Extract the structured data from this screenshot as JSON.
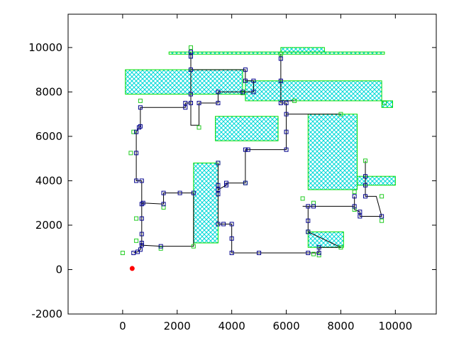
{
  "chart_data": {
    "type": "scatter",
    "title": "",
    "xlabel": "",
    "ylabel": "",
    "xlim": [
      -2000,
      11500
    ],
    "ylim": [
      -2000,
      11500
    ],
    "x_ticks": [
      0,
      2000,
      4000,
      6000,
      8000,
      10000
    ],
    "y_ticks": [
      -2000,
      0,
      2000,
      4000,
      6000,
      8000,
      10000
    ],
    "x_tick_labels": [
      "0",
      "2000",
      "4000",
      "6000",
      "8000",
      "10000"
    ],
    "y_tick_labels": [
      "-2000",
      "0",
      "2000",
      "4000",
      "6000",
      "8000",
      "10000"
    ],
    "grid": false,
    "colors": {
      "obstacle_fill": "#00ffff",
      "obstacle_edge": "#00dd00",
      "node_primary": "#00008b",
      "node_secondary": "#22cc22",
      "path": "#000000",
      "start": "#ff0000"
    },
    "obstacles": [
      {
        "x0": 1700,
        "y0": 9700,
        "x1": 9600,
        "y1": 9800
      },
      {
        "x0": 5800,
        "y0": 9800,
        "x1": 7400,
        "y1": 10000
      },
      {
        "x0": 100,
        "y0": 7900,
        "x1": 4400,
        "y1": 9000
      },
      {
        "x0": 4500,
        "y0": 7600,
        "x1": 9500,
        "y1": 8500
      },
      {
        "x0": 9500,
        "y0": 7300,
        "x1": 9900,
        "y1": 7600
      },
      {
        "x0": 3400,
        "y0": 5800,
        "x1": 5700,
        "y1": 6900
      },
      {
        "x0": 6800,
        "y0": 3600,
        "x1": 8600,
        "y1": 7000
      },
      {
        "x0": 8600,
        "y0": 3800,
        "x1": 10000,
        "y1": 4200
      },
      {
        "x0": 2600,
        "y0": 1200,
        "x1": 3500,
        "y1": 4800
      },
      {
        "x0": 6800,
        "y0": 1000,
        "x1": 8100,
        "y1": 1700
      }
    ],
    "path": [
      [
        400,
        750
      ],
      [
        550,
        800
      ],
      [
        650,
        900
      ],
      [
        700,
        1200
      ],
      [
        700,
        1600
      ],
      [
        700,
        2300
      ],
      [
        700,
        2950
      ],
      [
        750,
        3000
      ],
      [
        1500,
        2950
      ],
      [
        1500,
        3450
      ],
      [
        2100,
        3450
      ],
      [
        2600,
        3450
      ],
      [
        2600,
        1050
      ],
      [
        1400,
        1050
      ],
      [
        700,
        1100
      ],
      [
        700,
        4000
      ],
      [
        500,
        4000
      ],
      [
        500,
        5250
      ],
      [
        500,
        6200
      ],
      [
        600,
        6400
      ],
      [
        650,
        6450
      ],
      [
        650,
        7300
      ],
      [
        2300,
        7300
      ],
      [
        2300,
        7500
      ],
      [
        2500,
        7500
      ],
      [
        2500,
        7900
      ],
      [
        2500,
        9000
      ],
      [
        4500,
        9000
      ],
      [
        4500,
        8500
      ],
      [
        4800,
        8500
      ],
      [
        4800,
        8000
      ],
      [
        4400,
        8000
      ],
      [
        3500,
        8000
      ],
      [
        3500,
        7500
      ],
      [
        2800,
        7500
      ],
      [
        2800,
        6500
      ],
      [
        2500,
        6500
      ],
      [
        2500,
        9000
      ],
      [
        2500,
        9600
      ],
      [
        2500,
        9800
      ]
    ],
    "path2": [
      [
        3500,
        4800
      ],
      [
        3500,
        3800
      ],
      [
        3500,
        3600
      ],
      [
        3500,
        3400
      ],
      [
        3500,
        2050
      ],
      [
        3700,
        2050
      ],
      [
        4000,
        2050
      ],
      [
        4000,
        1400
      ],
      [
        4000,
        750
      ],
      [
        5000,
        750
      ],
      [
        6800,
        750
      ],
      [
        7200,
        750
      ],
      [
        7200,
        1000
      ],
      [
        8000,
        1000
      ],
      [
        6800,
        1700
      ],
      [
        6800,
        2200
      ],
      [
        6800,
        2850
      ],
      [
        6600,
        2850
      ],
      [
        7000,
        2850
      ],
      [
        8500,
        2850
      ],
      [
        8500,
        3300
      ],
      [
        8500,
        2700
      ],
      [
        8700,
        2600
      ],
      [
        8700,
        2400
      ],
      [
        9500,
        2400
      ],
      [
        9300,
        3300
      ],
      [
        8900,
        3300
      ],
      [
        8900,
        3800
      ],
      [
        8900,
        4200
      ],
      [
        8900,
        4900
      ]
    ],
    "path3": [
      [
        3500,
        3600
      ],
      [
        3800,
        3800
      ],
      [
        3800,
        3900
      ],
      [
        4500,
        3900
      ],
      [
        4500,
        5400
      ],
      [
        4600,
        5400
      ],
      [
        6000,
        5400
      ],
      [
        6000,
        6200
      ],
      [
        6000,
        7000
      ],
      [
        8000,
        7000
      ],
      [
        6000,
        7000
      ],
      [
        6000,
        7500
      ],
      [
        5800,
        7500
      ],
      [
        5800,
        7600
      ],
      [
        6300,
        7600
      ],
      [
        5800,
        7600
      ],
      [
        5800,
        8500
      ],
      [
        5800,
        9500
      ],
      [
        5800,
        9700
      ]
    ],
    "nodes_primary": [
      [
        400,
        750
      ],
      [
        550,
        800
      ],
      [
        650,
        900
      ],
      [
        700,
        1200
      ],
      [
        700,
        1600
      ],
      [
        700,
        2300
      ],
      [
        700,
        2950
      ],
      [
        750,
        3000
      ],
      [
        1500,
        2950
      ],
      [
        1500,
        3450
      ],
      [
        2100,
        3450
      ],
      [
        2600,
        3450
      ],
      [
        1400,
        1050
      ],
      [
        700,
        1100
      ],
      [
        700,
        4000
      ],
      [
        500,
        4000
      ],
      [
        500,
        5250
      ],
      [
        500,
        6200
      ],
      [
        600,
        6400
      ],
      [
        650,
        6450
      ],
      [
        650,
        7300
      ],
      [
        2300,
        7300
      ],
      [
        2300,
        7500
      ],
      [
        2500,
        7500
      ],
      [
        2500,
        7900
      ],
      [
        2500,
        9000
      ],
      [
        4500,
        9000
      ],
      [
        4500,
        8500
      ],
      [
        4800,
        8000
      ],
      [
        4400,
        8000
      ],
      [
        3500,
        8000
      ],
      [
        3500,
        7500
      ],
      [
        2800,
        7500
      ],
      [
        2500,
        9600
      ],
      [
        2500,
        9800
      ],
      [
        3500,
        4800
      ],
      [
        3500,
        3800
      ],
      [
        3500,
        3600
      ],
      [
        3500,
        3400
      ],
      [
        3500,
        2050
      ],
      [
        3700,
        2050
      ],
      [
        4000,
        2050
      ],
      [
        4000,
        1400
      ],
      [
        4000,
        750
      ],
      [
        5000,
        750
      ],
      [
        6800,
        750
      ],
      [
        7200,
        750
      ],
      [
        7200,
        1000
      ],
      [
        6800,
        1700
      ],
      [
        6800,
        2200
      ],
      [
        6800,
        2850
      ],
      [
        7000,
        2850
      ],
      [
        8500,
        2850
      ],
      [
        8500,
        3300
      ],
      [
        8700,
        2600
      ],
      [
        8700,
        2400
      ],
      [
        9500,
        2400
      ],
      [
        8900,
        3300
      ],
      [
        8900,
        3800
      ],
      [
        8900,
        4200
      ],
      [
        3800,
        3800
      ],
      [
        3800,
        3900
      ],
      [
        4500,
        3900
      ],
      [
        4600,
        5400
      ],
      [
        6000,
        5400
      ],
      [
        6000,
        6200
      ],
      [
        6000,
        7000
      ],
      [
        6000,
        7500
      ],
      [
        5800,
        7500
      ],
      [
        5800,
        8500
      ],
      [
        5800,
        9500
      ],
      [
        4800,
        8500
      ],
      [
        4500,
        5400
      ]
    ],
    "nodes_secondary": [
      [
        0,
        750
      ],
      [
        300,
        5250
      ],
      [
        400,
        6200
      ],
      [
        650,
        7600
      ],
      [
        500,
        2300
      ],
      [
        500,
        1300
      ],
      [
        1400,
        950
      ],
      [
        1500,
        2800
      ],
      [
        2500,
        9600
      ],
      [
        2500,
        10000
      ],
      [
        2800,
        6400
      ],
      [
        2600,
        1050
      ],
      [
        3500,
        4800
      ],
      [
        4500,
        3900
      ],
      [
        6300,
        7600
      ],
      [
        5800,
        9700
      ],
      [
        8000,
        7000
      ],
      [
        6600,
        3200
      ],
      [
        7000,
        3000
      ],
      [
        7000,
        700
      ],
      [
        7200,
        650
      ],
      [
        8000,
        1000
      ],
      [
        6800,
        1700
      ],
      [
        8500,
        3500
      ],
      [
        8500,
        2700
      ],
      [
        9500,
        3300
      ],
      [
        9500,
        2200
      ],
      [
        8900,
        4900
      ],
      [
        9600,
        7500
      ],
      [
        4400,
        7950
      ]
    ],
    "start": [
      350,
      50
    ]
  }
}
